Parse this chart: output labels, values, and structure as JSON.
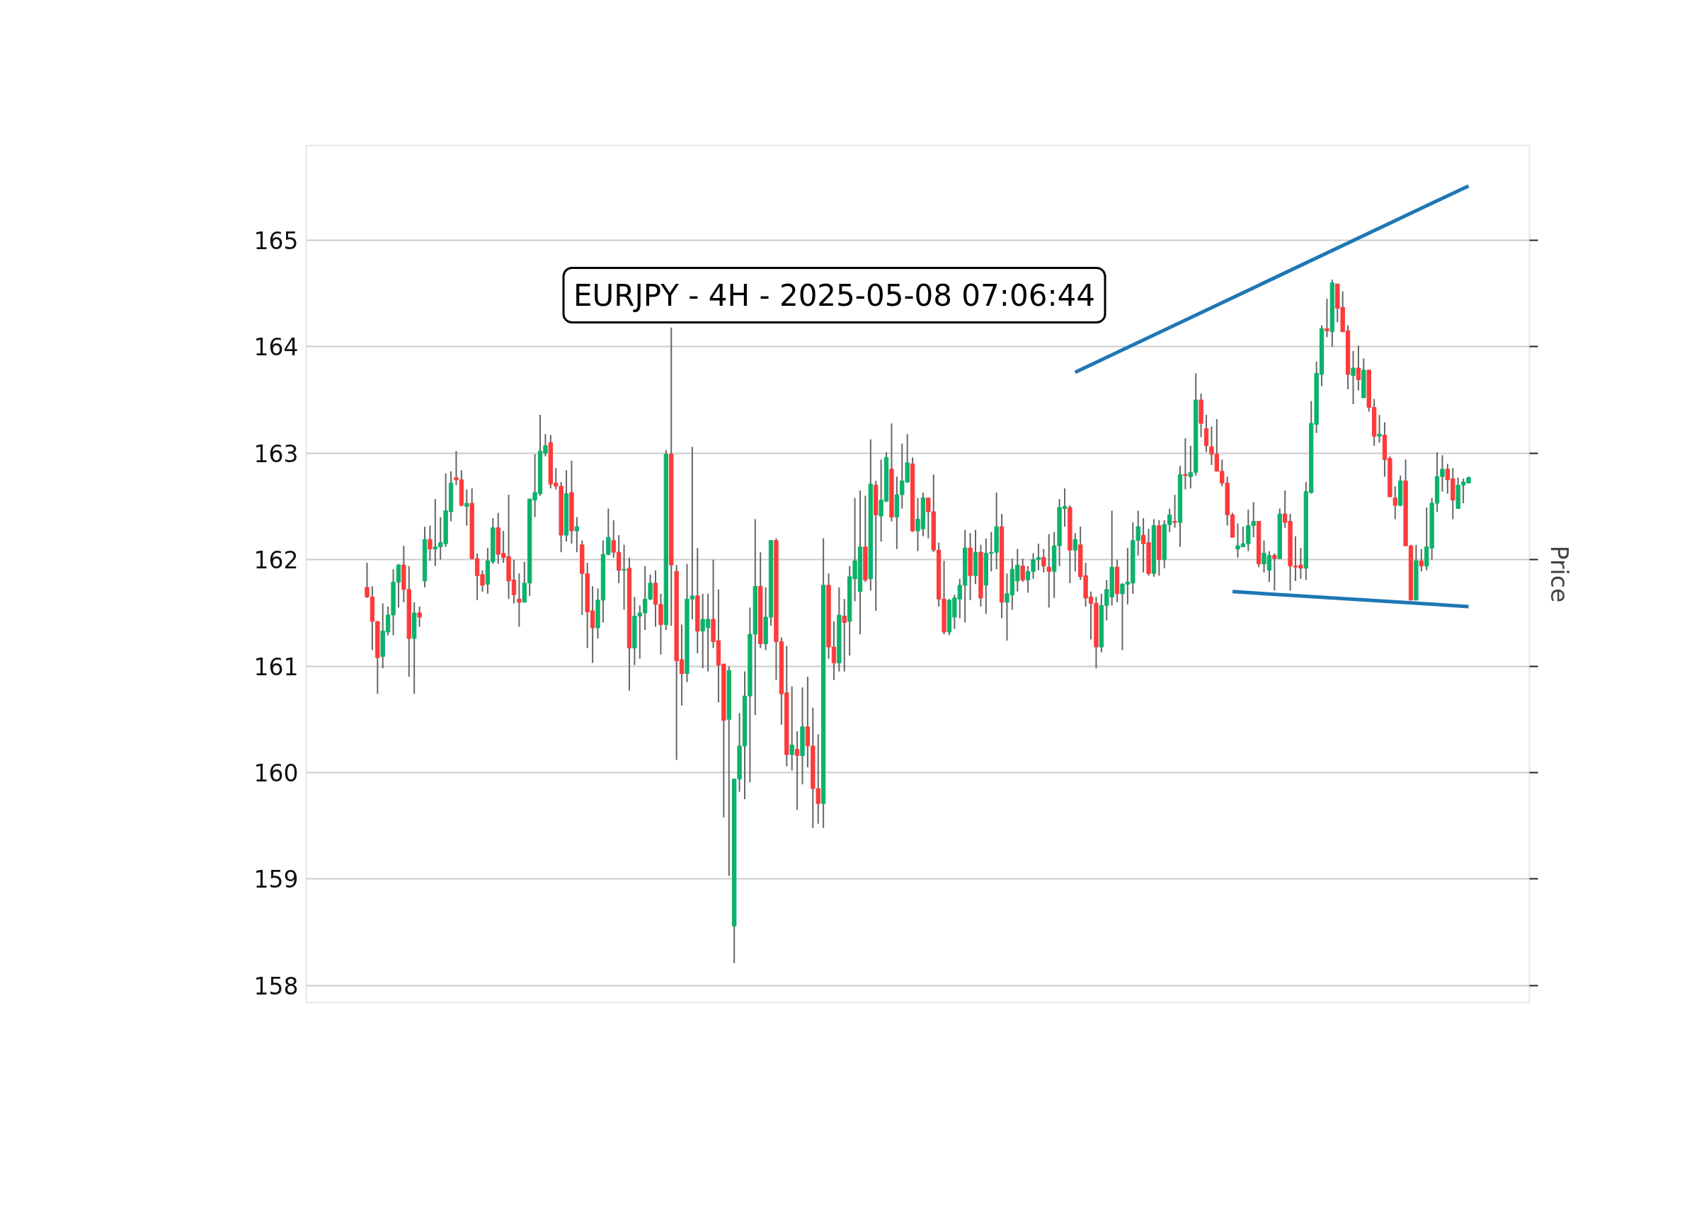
{
  "chart_data": {
    "type": "candlestick",
    "title": "EURJPY - 4H - 2025-05-08 07:06:44",
    "ylabel": "Price",
    "colors": [
      "#ff3a3a",
      "#ff3a3a",
      "#ff3a3a",
      "#0bb26b",
      "#0bb26b",
      "#0bb26b",
      "#0bb26b",
      "#ff3a3a",
      "#ff3a3a",
      "#0bb26b",
      "#ff3a3a",
      "#0bb26b",
      "#ff3a3a",
      "#0bb26b",
      "#0bb26b",
      "#0bb26b",
      "#0bb26b",
      "#ff3a3a",
      "#ff3a3a",
      "#0bb26b",
      "#ff3a3a",
      "#ff3a3a",
      "#ff3a3a",
      "#0bb26b",
      "#0bb26b",
      "#ff3a3a",
      "#ff3a3a",
      "#ff3a3a",
      "#ff3a3a",
      "#ff3a3a",
      "#0bb26b",
      "#0bb26b",
      "#0bb26b",
      "#0bb26b",
      "#0bb26b",
      "#ff3a3a",
      "#ff3a3a",
      "#ff3a3a",
      "#0bb26b",
      "#ff3a3a",
      "#0bb26b",
      "#ff3a3a",
      "#ff3a3a",
      "#ff3a3a",
      "#0bb26b",
      "#0bb26b",
      "#0bb26b",
      "#ff3a3a",
      "#ff3a3a",
      "#0bb26b",
      "#ff3a3a",
      "#0bb26b",
      "#0bb26b",
      "#0bb26b",
      "#0bb26b",
      "#ff3a3a",
      "#ff3a3a",
      "#0bb26b",
      "#ff3a3a",
      "#ff3a3a",
      "#ff3a3a",
      "#0bb26b",
      "#0bb26b",
      "#ff3a3a",
      "#0bb26b",
      "#0bb26b",
      "#ff3a3a",
      "#ff3a3a",
      "#ff3a3a",
      "#0bb26b",
      "#0bb26b",
      "#0bb26b",
      "#0bb26b",
      "#0bb26b",
      "#0bb26b",
      "#ff3a3a",
      "#0bb26b",
      "#0bb26b",
      "#ff3a3a",
      "#ff3a3a",
      "#ff3a3a",
      "#0bb26b",
      "#ff3a3a",
      "#0bb26b",
      "#ff3a3a",
      "#ff3a3a",
      "#ff3a3a",
      "#0bb26b",
      "#ff3a3a",
      "#ff3a3a",
      "#0bb26b",
      "#ff3a3a",
      "#0bb26b",
      "#0bb26b",
      "#0bb26b",
      "#ff3a3a",
      "#0bb26b",
      "#ff3a3a",
      "#0bb26b",
      "#0bb26b",
      "#ff3a3a",
      "#0bb26b",
      "#0bb26b",
      "#0bb26b",
      "#ff3a3a",
      "#0bb26b",
      "#0bb26b",
      "#ff3a3a",
      "#ff3a3a",
      "#ff3a3a",
      "#ff3a3a",
      "#0bb26b",
      "#0bb26b",
      "#0bb26b",
      "#0bb26b",
      "#ff3a3a",
      "#0bb26b",
      "#ff3a3a",
      "#0bb26b",
      "#0bb26b",
      "#0bb26b",
      "#ff3a3a",
      "#0bb26b",
      "#0bb26b",
      "#0bb26b",
      "#ff3a3a",
      "#0bb26b",
      "#0bb26b",
      "#0bb26b",
      "#ff3a3a",
      "#ff3a3a",
      "#0bb26b",
      "#0bb26b",
      "#0bb26b",
      "#ff3a3a",
      "#0bb26b",
      "#ff3a3a",
      "#ff3a3a",
      "#ff3a3a",
      "#ff3a3a",
      "#0bb26b",
      "#0bb26b",
      "#0bb26b",
      "#ff3a3a",
      "#0bb26b",
      "#0bb26b",
      "#0bb26b",
      "#0bb26b",
      "#ff3a3a",
      "#ff3a3a",
      "#0bb26b",
      "#ff3a3a",
      "#0bb26b",
      "#0bb26b",
      "#ff3a3a",
      "#0bb26b",
      "#ff3a3a",
      "#0bb26b",
      "#0bb26b",
      "#ff3a3a",
      "#ff3a3a",
      "#ff3a3a",
      "#ff3a3a",
      "#ff3a3a",
      "#ff3a3a",
      "#ff3a3a",
      "#0bb26b",
      "#0bb26b",
      "#0bb26b",
      "#0bb26b",
      "#ff3a3a",
      "#0bb26b",
      "#0bb26b",
      "#ff3a3a",
      "#0bb26b",
      "#ff3a3a",
      "#ff3a3a",
      "#ff3a3a",
      "#ff3a3a",
      "#0bb26b",
      "#0bb26b",
      "#0bb26b",
      "#0bb26b",
      "#ff3a3a",
      "#0bb26b",
      "#ff3a3a",
      "#ff3a3a",
      "#ff3a3a",
      "#0bb26b",
      "#ff3a3a",
      "#0bb26b",
      "#ff3a3a",
      "#ff3a3a",
      "#0bb26b",
      "#ff3a3a",
      "#ff3a3a",
      "#ff3a3a",
      "#0bb26b",
      "#ff3a3a",
      "#ff3a3a",
      "#0bb26b",
      "#ff3a3a",
      "#0bb26b",
      "#0bb26b",
      "#0bb26b",
      "#0bb26b",
      "#ff3a3a",
      "#ff3a3a",
      "#0bb26b",
      "#0bb26b",
      "#0bb26b"
    ],
    "ylim": [
      157.84,
      165.89
    ],
    "yticks": [
      158,
      159,
      160,
      161,
      162,
      163,
      164,
      165
    ],
    "grid": "y",
    "categories": [
      null,
      null,
      null,
      null,
      null,
      null,
      null,
      null,
      null,
      null,
      null,
      null,
      null,
      null,
      null,
      null,
      null,
      null,
      null,
      null,
      null,
      null,
      null,
      null,
      null,
      null,
      null,
      null,
      null,
      null,
      null,
      null,
      null,
      null,
      null,
      null,
      null,
      null,
      null,
      null,
      null,
      null,
      null,
      null,
      null,
      null,
      null,
      null,
      null,
      null,
      null,
      null,
      null,
      null,
      null,
      null,
      null,
      null,
      null,
      null,
      null,
      null,
      null,
      null,
      null,
      null,
      null,
      null,
      null,
      null,
      null,
      null,
      null,
      null,
      null,
      null,
      null,
      null,
      null,
      null,
      null,
      null,
      null,
      null,
      null,
      null,
      null,
      null,
      null,
      null,
      null,
      null,
      null,
      null,
      null,
      null,
      null,
      null,
      null,
      null,
      null,
      null,
      null,
      null,
      null,
      null,
      null,
      null,
      null,
      null,
      null,
      null,
      null,
      null,
      null,
      null,
      null,
      null,
      null,
      null,
      null,
      null,
      null,
      null,
      null,
      null,
      null,
      null,
      null,
      null,
      null,
      null,
      null,
      null,
      null,
      null,
      null,
      null,
      null,
      null,
      null,
      null,
      null,
      null,
      null,
      null,
      null,
      null,
      null,
      null,
      null,
      null,
      null,
      null,
      null,
      null,
      null,
      null,
      null,
      null,
      null,
      null,
      null,
      null,
      null,
      null,
      null,
      null,
      null,
      null,
      null,
      null,
      null,
      null,
      null,
      null,
      null,
      null,
      null,
      null,
      null,
      null,
      null,
      null,
      null,
      null,
      null,
      null,
      null,
      null,
      null,
      null,
      null,
      null,
      null,
      null,
      null,
      null,
      null,
      null,
      null,
      null,
      null,
      null,
      null,
      null,
      null,
      null,
      null,
      null,
      null
    ],
    "ohlc": [
      [
        161.74,
        161.97,
        161.64,
        161.65
      ],
      [
        161.65,
        161.75,
        161.15,
        161.42
      ],
      [
        161.42,
        161.42,
        160.74,
        161.08
      ],
      [
        161.09,
        161.59,
        160.98,
        161.33
      ],
      [
        161.32,
        161.56,
        161.29,
        161.48
      ],
      [
        161.48,
        161.91,
        161.29,
        161.79
      ],
      [
        161.79,
        161.96,
        161.55,
        161.95
      ],
      [
        161.95,
        162.13,
        161.6,
        161.72
      ],
      [
        161.72,
        161.94,
        160.9,
        161.26
      ],
      [
        161.26,
        161.6,
        160.74,
        161.5
      ],
      [
        161.5,
        161.56,
        161.37,
        161.46
      ],
      [
        161.8,
        162.31,
        161.74,
        162.19
      ],
      [
        162.19,
        162.32,
        161.99,
        162.1
      ],
      [
        162.1,
        162.57,
        161.94,
        162.12
      ],
      [
        162.12,
        162.4,
        162.0,
        162.16
      ],
      [
        162.15,
        162.81,
        162.12,
        162.46
      ],
      [
        162.45,
        162.83,
        162.36,
        162.72
      ],
      [
        162.77,
        163.02,
        162.7,
        162.75
      ],
      [
        162.75,
        162.84,
        162.5,
        162.51
      ],
      [
        162.5,
        162.66,
        162.32,
        162.53
      ],
      [
        162.53,
        162.67,
        162.0,
        162.01
      ],
      [
        162.01,
        162.06,
        161.62,
        161.85
      ],
      [
        161.86,
        161.9,
        161.7,
        161.76
      ],
      [
        161.77,
        162.11,
        161.68,
        161.99
      ],
      [
        161.98,
        162.39,
        161.96,
        162.3
      ],
      [
        162.3,
        162.44,
        161.96,
        162.05
      ],
      [
        162.06,
        162.27,
        161.97,
        162.02
      ],
      [
        162.03,
        162.61,
        161.63,
        161.8
      ],
      [
        161.81,
        162.0,
        161.59,
        161.67
      ],
      [
        161.63,
        161.87,
        161.37,
        161.6
      ],
      [
        161.6,
        161.98,
        161.6,
        161.78
      ],
      [
        161.78,
        162.57,
        161.66,
        162.57
      ],
      [
        162.56,
        162.99,
        162.4,
        162.63
      ],
      [
        162.62,
        163.36,
        162.6,
        163.02
      ],
      [
        163.0,
        163.18,
        162.97,
        163.07
      ],
      [
        163.1,
        163.17,
        162.67,
        162.71
      ],
      [
        162.72,
        162.86,
        162.66,
        162.69
      ],
      [
        162.69,
        162.73,
        162.07,
        162.23
      ],
      [
        162.23,
        162.84,
        162.17,
        162.62
      ],
      [
        162.63,
        162.93,
        162.15,
        162.27
      ],
      [
        162.27,
        162.4,
        162.07,
        162.31
      ],
      [
        162.14,
        162.18,
        161.48,
        161.87
      ],
      [
        161.87,
        161.97,
        161.17,
        161.51
      ],
      [
        161.52,
        161.75,
        161.03,
        161.36
      ],
      [
        161.36,
        161.73,
        161.26,
        161.62
      ],
      [
        161.62,
        162.18,
        161.41,
        162.05
      ],
      [
        162.05,
        162.48,
        162.04,
        162.21
      ],
      [
        162.18,
        162.37,
        162.02,
        162.07
      ],
      [
        162.07,
        162.23,
        161.78,
        161.9
      ],
      [
        161.9,
        162.14,
        161.53,
        161.91
      ],
      [
        161.92,
        162.02,
        160.77,
        161.17
      ],
      [
        161.17,
        161.65,
        161.01,
        161.47
      ],
      [
        161.47,
        161.57,
        161.07,
        161.5
      ],
      [
        161.5,
        161.94,
        161.34,
        161.63
      ],
      [
        161.63,
        161.86,
        161.62,
        161.78
      ],
      [
        161.78,
        161.9,
        161.37,
        161.58
      ],
      [
        161.58,
        161.68,
        161.11,
        161.39
      ],
      [
        161.39,
        163.03,
        161.34,
        162.99
      ],
      [
        162.99,
        164.18,
        161.38,
        161.95
      ],
      [
        161.89,
        161.95,
        160.12,
        161.05
      ],
      [
        161.06,
        161.39,
        160.63,
        160.93
      ],
      [
        160.93,
        161.96,
        160.85,
        161.63
      ],
      [
        161.63,
        163.06,
        161.44,
        161.66
      ],
      [
        161.66,
        162.11,
        161.12,
        161.33
      ],
      [
        161.33,
        161.68,
        160.98,
        161.44
      ],
      [
        161.36,
        161.68,
        160.95,
        161.44
      ],
      [
        161.44,
        162.0,
        161.17,
        161.23
      ],
      [
        161.24,
        161.72,
        160.66,
        161.01
      ],
      [
        161.02,
        161.02,
        159.58,
        160.49
      ],
      [
        160.5,
        161.0,
        159.03,
        160.96
      ],
      [
        158.56,
        159.94,
        158.21,
        159.94
      ],
      [
        159.94,
        160.56,
        159.82,
        160.25
      ],
      [
        160.25,
        160.95,
        159.75,
        160.72
      ],
      [
        160.72,
        161.55,
        159.91,
        161.3
      ],
      [
        161.3,
        162.38,
        160.54,
        161.75
      ],
      [
        161.75,
        162.07,
        161.17,
        161.21
      ],
      [
        161.21,
        161.74,
        161.15,
        161.46
      ],
      [
        161.46,
        162.18,
        161.38,
        162.18
      ],
      [
        162.18,
        162.2,
        160.87,
        161.23
      ],
      [
        161.23,
        161.27,
        160.45,
        160.74
      ],
      [
        160.75,
        161.19,
        160.06,
        160.17
      ],
      [
        160.17,
        160.81,
        160.02,
        160.26
      ],
      [
        160.22,
        160.39,
        159.65,
        160.16
      ],
      [
        160.16,
        160.8,
        159.89,
        160.43
      ],
      [
        160.43,
        160.9,
        160.05,
        160.25
      ],
      [
        160.25,
        160.61,
        159.48,
        159.85
      ],
      [
        159.85,
        160.36,
        159.52,
        159.71
      ],
      [
        159.71,
        162.2,
        159.48,
        161.76
      ],
      [
        161.76,
        161.87,
        161.07,
        161.18
      ],
      [
        161.18,
        161.42,
        160.87,
        161.03
      ],
      [
        161.03,
        161.74,
        160.95,
        161.48
      ],
      [
        161.47,
        161.63,
        160.95,
        161.41
      ],
      [
        161.42,
        161.94,
        161.1,
        161.84
      ],
      [
        161.82,
        162.58,
        161.61,
        161.99
      ],
      [
        161.7,
        162.65,
        161.3,
        162.12
      ],
      [
        162.12,
        162.6,
        161.79,
        161.81
      ],
      [
        161.82,
        163.13,
        161.71,
        162.71
      ],
      [
        162.7,
        162.74,
        161.52,
        162.42
      ],
      [
        162.41,
        162.94,
        162.17,
        162.56
      ],
      [
        162.55,
        163.01,
        162.54,
        162.96
      ],
      [
        162.85,
        163.28,
        162.36,
        162.4
      ],
      [
        162.4,
        162.78,
        162.1,
        162.61
      ],
      [
        162.61,
        163.09,
        162.48,
        162.74
      ],
      [
        162.73,
        163.18,
        162.72,
        162.91
      ],
      [
        162.9,
        162.96,
        162.26,
        162.27
      ],
      [
        162.27,
        162.58,
        162.08,
        162.38
      ],
      [
        162.29,
        162.63,
        162.22,
        162.58
      ],
      [
        162.58,
        162.58,
        162.2,
        162.45
      ],
      [
        162.45,
        162.8,
        162.07,
        162.09
      ],
      [
        162.09,
        162.16,
        161.56,
        161.63
      ],
      [
        161.63,
        161.99,
        161.3,
        161.32
      ],
      [
        161.32,
        161.63,
        161.29,
        161.62
      ],
      [
        161.46,
        161.67,
        161.35,
        161.64
      ],
      [
        161.63,
        161.82,
        161.45,
        161.76
      ],
      [
        161.76,
        162.28,
        161.41,
        162.11
      ],
      [
        162.11,
        162.25,
        161.62,
        161.85
      ],
      [
        161.85,
        162.28,
        161.77,
        162.07
      ],
      [
        162.07,
        162.14,
        161.56,
        161.64
      ],
      [
        161.76,
        162.2,
        161.49,
        162.06
      ],
      [
        162.06,
        162.26,
        161.89,
        162.07
      ],
      [
        162.07,
        162.63,
        161.91,
        162.31
      ],
      [
        162.31,
        162.43,
        161.45,
        161.6
      ],
      [
        161.6,
        161.87,
        161.24,
        161.68
      ],
      [
        161.67,
        162.01,
        161.53,
        161.91
      ],
      [
        161.8,
        162.1,
        161.7,
        161.95
      ],
      [
        161.94,
        162.01,
        161.79,
        161.81
      ],
      [
        161.81,
        161.94,
        161.69,
        161.89
      ],
      [
        161.89,
        162.06,
        161.82,
        162.0
      ],
      [
        162.0,
        162.15,
        161.9,
        162.02
      ],
      [
        162.02,
        162.1,
        161.88,
        161.94
      ],
      [
        161.93,
        162.24,
        161.55,
        161.89
      ],
      [
        161.89,
        162.26,
        161.64,
        162.13
      ],
      [
        162.13,
        162.57,
        161.94,
        162.49
      ],
      [
        162.48,
        162.67,
        162.31,
        162.5
      ],
      [
        162.49,
        162.51,
        161.78,
        162.09
      ],
      [
        162.09,
        162.25,
        161.89,
        162.19
      ],
      [
        162.14,
        162.31,
        161.81,
        161.84
      ],
      [
        161.85,
        161.97,
        161.56,
        161.64
      ],
      [
        161.65,
        161.7,
        161.25,
        161.59
      ],
      [
        161.59,
        161.65,
        160.98,
        161.18
      ],
      [
        161.18,
        161.68,
        161.13,
        161.57
      ],
      [
        161.57,
        161.81,
        161.43,
        161.72
      ],
      [
        161.65,
        162.46,
        161.57,
        161.93
      ],
      [
        161.93,
        162.0,
        161.6,
        161.68
      ],
      [
        161.68,
        161.78,
        161.15,
        161.77
      ],
      [
        161.77,
        162.11,
        161.58,
        161.79
      ],
      [
        161.78,
        162.35,
        161.68,
        162.18
      ],
      [
        162.18,
        162.46,
        162.04,
        162.31
      ],
      [
        162.23,
        162.39,
        161.88,
        162.15
      ],
      [
        162.16,
        162.29,
        161.85,
        161.87
      ],
      [
        161.87,
        162.38,
        161.84,
        162.32
      ],
      [
        162.32,
        162.37,
        161.85,
        162.0
      ],
      [
        162.0,
        162.37,
        161.92,
        162.33
      ],
      [
        162.33,
        162.48,
        162.26,
        162.42
      ],
      [
        162.36,
        162.61,
        162.3,
        162.35
      ],
      [
        162.35,
        162.88,
        162.12,
        162.8
      ],
      [
        162.8,
        163.14,
        162.66,
        162.79
      ],
      [
        162.78,
        163.07,
        162.67,
        162.82
      ],
      [
        162.82,
        163.75,
        162.79,
        163.5
      ],
      [
        163.5,
        163.56,
        163.15,
        163.28
      ],
      [
        163.23,
        163.36,
        163.01,
        163.07
      ],
      [
        163.06,
        163.25,
        162.89,
        162.99
      ],
      [
        162.99,
        163.32,
        162.83,
        162.83
      ],
      [
        162.83,
        162.94,
        162.69,
        162.72
      ],
      [
        162.72,
        162.78,
        162.32,
        162.42
      ],
      [
        162.42,
        162.44,
        162.21,
        162.21
      ],
      [
        162.1,
        162.34,
        162.02,
        162.13
      ],
      [
        162.12,
        162.31,
        162.12,
        162.15
      ],
      [
        162.15,
        162.47,
        162.08,
        162.32
      ],
      [
        162.32,
        162.54,
        162.21,
        162.36
      ],
      [
        162.36,
        162.36,
        161.93,
        161.96
      ],
      [
        161.96,
        162.18,
        161.88,
        162.06
      ],
      [
        161.9,
        162.08,
        161.79,
        162.04
      ],
      [
        162.04,
        162.06,
        161.71,
        162.01
      ],
      [
        162.01,
        162.48,
        162.01,
        162.43
      ],
      [
        162.43,
        162.65,
        162.3,
        162.35
      ],
      [
        162.36,
        162.43,
        161.71,
        161.94
      ],
      [
        161.94,
        162.22,
        161.8,
        161.93
      ],
      [
        161.95,
        162.11,
        161.82,
        161.92
      ],
      [
        161.92,
        162.73,
        161.81,
        162.64
      ],
      [
        162.63,
        163.49,
        162.62,
        163.28
      ],
      [
        163.27,
        163.86,
        163.19,
        163.75
      ],
      [
        163.74,
        164.2,
        163.63,
        164.17
      ],
      [
        164.17,
        164.45,
        164.09,
        164.15
      ],
      [
        164.14,
        164.63,
        164.0,
        164.6
      ],
      [
        164.59,
        164.59,
        164.23,
        164.36
      ],
      [
        164.37,
        164.52,
        164.14,
        164.14
      ],
      [
        164.15,
        164.2,
        163.6,
        163.74
      ],
      [
        163.73,
        163.96,
        163.46,
        163.8
      ],
      [
        163.8,
        164.01,
        163.59,
        163.69
      ],
      [
        163.52,
        163.89,
        163.52,
        163.78
      ],
      [
        163.78,
        163.78,
        163.39,
        163.43
      ],
      [
        163.43,
        163.51,
        163.07,
        163.16
      ],
      [
        163.16,
        163.36,
        163.1,
        163.18
      ],
      [
        163.17,
        163.29,
        162.78,
        162.94
      ],
      [
        162.95,
        162.97,
        162.59,
        162.59
      ],
      [
        162.58,
        162.69,
        162.38,
        162.51
      ],
      [
        162.51,
        162.79,
        162.5,
        162.74
      ],
      [
        162.74,
        162.94,
        162.13,
        162.13
      ],
      [
        162.13,
        162.14,
        161.62,
        161.62
      ],
      [
        161.62,
        162.14,
        161.62,
        161.99
      ],
      [
        161.99,
        162.1,
        161.89,
        161.94
      ],
      [
        161.94,
        162.49,
        161.9,
        162.12
      ],
      [
        162.11,
        162.58,
        162.0,
        162.53
      ],
      [
        162.53,
        163.01,
        162.45,
        162.78
      ],
      [
        162.78,
        162.98,
        162.64,
        162.85
      ],
      [
        162.85,
        162.9,
        162.62,
        162.75
      ],
      [
        162.76,
        162.86,
        162.38,
        162.56
      ],
      [
        162.48,
        162.77,
        162.48,
        162.7
      ],
      [
        162.7,
        162.76,
        162.53,
        162.73
      ],
      [
        162.72,
        162.78,
        162.72,
        162.77
      ]
    ],
    "series": [
      {
        "type": "line",
        "values": [
          null,
          null,
          null,
          null,
          null,
          null,
          null,
          null,
          null,
          null,
          null,
          null,
          null,
          null,
          null,
          null,
          null,
          null,
          null,
          null,
          null,
          null,
          null,
          null,
          null,
          null,
          null,
          null,
          null,
          null,
          null,
          null,
          null,
          null,
          null,
          null,
          null,
          null,
          null,
          null,
          null,
          null,
          null,
          null,
          null,
          null,
          null,
          null,
          null,
          null,
          null,
          null,
          null,
          null,
          null,
          null,
          null,
          null,
          null,
          null,
          null,
          null,
          null,
          null,
          null,
          null,
          null,
          null,
          null,
          null,
          null,
          null,
          null,
          null,
          null,
          null,
          null,
          null,
          null,
          null,
          null,
          null,
          null,
          null,
          null,
          null,
          null,
          null,
          null,
          null,
          null,
          null,
          null,
          null,
          null,
          null,
          null,
          null,
          null,
          null,
          null,
          null,
          null,
          null,
          null,
          null,
          null,
          null,
          null,
          null,
          null,
          null,
          null,
          null,
          null,
          null,
          null,
          null,
          null,
          null,
          null,
          null,
          null,
          null,
          null,
          null,
          null,
          null,
          null,
          null,
          null,
          null,
          null,
          null,
          null,
          163.76,
          null,
          null,
          null,
          null,
          null,
          null,
          null,
          null,
          null,
          null,
          null,
          null,
          null,
          null,
          null,
          null,
          null,
          null,
          null,
          null,
          null,
          null,
          null,
          null,
          null,
          null,
          null,
          null,
          null,
          null,
          null,
          null,
          null,
          null,
          null,
          null,
          null,
          null,
          null,
          null,
          null,
          null,
          null,
          null,
          null,
          null,
          null,
          null,
          null,
          null,
          null,
          null,
          null,
          null,
          null,
          null,
          null,
          null,
          null,
          null,
          null,
          null,
          null,
          null,
          null,
          null,
          null,
          null,
          null,
          null,
          null,
          null,
          null,
          null,
          165.51
        ],
        "color": "#1f77b4"
      },
      {
        "type": "line",
        "values": [
          null,
          null,
          null,
          null,
          null,
          null,
          null,
          null,
          null,
          null,
          null,
          null,
          null,
          null,
          null,
          null,
          null,
          null,
          null,
          null,
          null,
          null,
          null,
          null,
          null,
          null,
          null,
          null,
          null,
          null,
          null,
          null,
          null,
          null,
          null,
          null,
          null,
          null,
          null,
          null,
          null,
          null,
          null,
          null,
          null,
          null,
          null,
          null,
          null,
          null,
          null,
          null,
          null,
          null,
          null,
          null,
          null,
          null,
          null,
          null,
          null,
          null,
          null,
          null,
          null,
          null,
          null,
          null,
          null,
          null,
          null,
          null,
          null,
          null,
          null,
          null,
          null,
          null,
          null,
          null,
          null,
          null,
          null,
          null,
          null,
          null,
          null,
          null,
          null,
          null,
          null,
          null,
          null,
          null,
          null,
          null,
          null,
          null,
          null,
          null,
          null,
          null,
          null,
          null,
          null,
          null,
          null,
          null,
          null,
          null,
          null,
          null,
          null,
          null,
          null,
          null,
          null,
          null,
          null,
          null,
          null,
          null,
          null,
          null,
          null,
          null,
          null,
          null,
          null,
          null,
          null,
          null,
          null,
          null,
          null,
          null,
          null,
          null,
          null,
          null,
          null,
          null,
          null,
          null,
          null,
          null,
          null,
          null,
          null,
          null,
          null,
          null,
          null,
          null,
          null,
          null,
          null,
          null,
          null,
          null,
          null,
          null,
          null,
          null,
          null,
          161.7,
          null,
          null,
          null,
          null,
          null,
          null,
          null,
          null,
          null,
          null,
          null,
          null,
          null,
          null,
          null,
          null,
          null,
          null,
          null,
          null,
          null,
          null,
          null,
          null,
          null,
          null,
          null,
          null,
          null,
          null,
          null,
          null,
          null,
          null,
          null,
          null,
          null,
          null,
          null,
          null,
          null,
          null,
          null,
          null,
          161.56
        ],
        "color": "#1f77b4"
      }
    ]
  }
}
